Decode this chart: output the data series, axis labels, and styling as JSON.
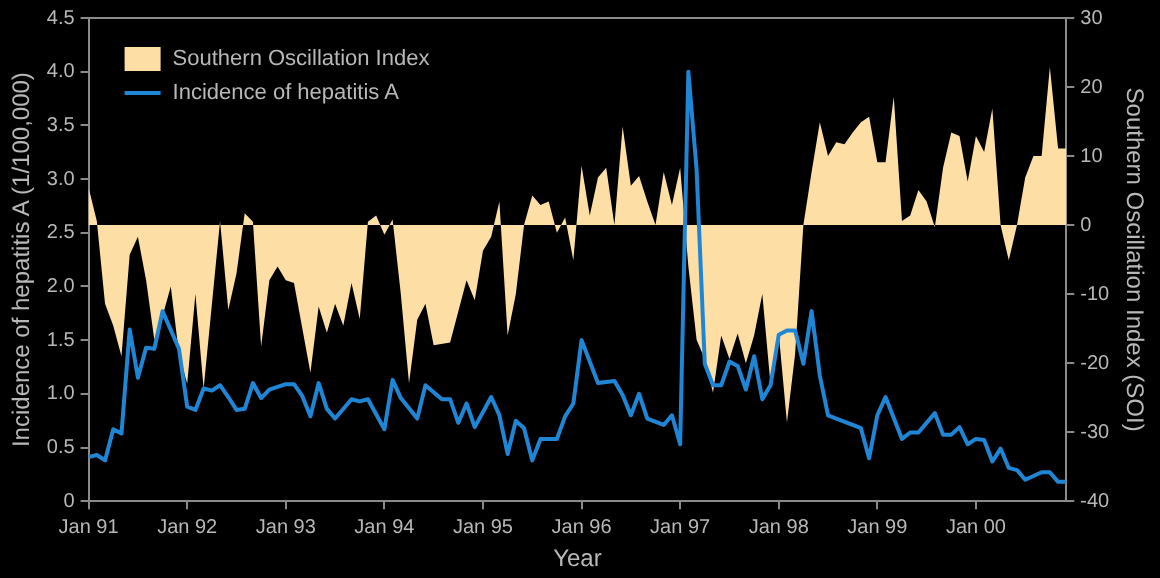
{
  "chart_data": {
    "type": "line",
    "xlabel": "Year",
    "ylabel": "Incidence of hepatitis A (1/100,000)",
    "y2label": "Southern Oscillation Index (SOI)",
    "legend": "top left",
    "grid": false,
    "marker": "none",
    "xlim": [
      "1991-01",
      "2000-12"
    ],
    "xticks": [
      {
        "value": "1991-01",
        "label": "Jan 91"
      },
      {
        "value": "1992-01",
        "label": "Jan 92"
      },
      {
        "value": "1993-01",
        "label": "Jan 93"
      },
      {
        "value": "1994-01",
        "label": "Jan 94"
      },
      {
        "value": "1995-01",
        "label": "Jan 95"
      },
      {
        "value": "1996-01",
        "label": "Jan 96"
      },
      {
        "value": "1997-01",
        "label": "Jan 97"
      },
      {
        "value": "1998-01",
        "label": "Jan 98"
      },
      {
        "value": "1999-01",
        "label": "Jan 99"
      },
      {
        "value": "2000-01",
        "label": "Jan 00"
      }
    ],
    "ylim": [
      0,
      4.5
    ],
    "yticks": [
      0,
      0.5,
      {
        "value": 1,
        "label": "1.0"
      },
      1.5,
      {
        "value": 2,
        "label": "2.0"
      },
      2.5,
      {
        "value": 3,
        "label": "3.0"
      },
      3.5,
      {
        "value": 4,
        "label": "4.0"
      },
      4.5
    ],
    "y2lim": [
      -40,
      30
    ],
    "y2ticks": [
      -40,
      -30,
      -20,
      -10,
      0,
      10,
      20,
      30
    ],
    "series": [
      {
        "name": "Southern Oscillation Index",
        "type": "area",
        "axis": "y2",
        "color": "#fddfa6",
        "x": [
          "1991-01",
          "1991-02",
          "1991-03",
          "1991-04",
          "1991-05",
          "1991-06",
          "1991-07",
          "1991-08",
          "1991-09",
          "1991-10",
          "1991-11",
          "1991-12",
          "1992-01",
          "1992-02",
          "1992-03",
          "1992-05",
          "1992-06",
          "1992-07",
          "1992-08",
          "1992-09",
          "1992-10",
          "1992-11",
          "1992-12",
          "1993-01",
          "1993-02",
          "1993-04",
          "1993-05",
          "1993-06",
          "1993-07",
          "1993-08",
          "1993-09",
          "1993-10",
          "1993-11",
          "1993-12",
          "1994-01",
          "1994-02",
          "1994-03",
          "1994-04",
          "1994-05",
          "1994-06",
          "1994-07",
          "1994-09",
          "1994-11",
          "1994-12",
          "1995-01",
          "1995-02",
          "1995-03",
          "1995-04",
          "1995-05",
          "1995-06",
          "1995-07",
          "1995-08",
          "1995-09",
          "1995-10",
          "1995-11",
          "1995-12",
          "1996-01",
          "1996-02",
          "1996-03",
          "1996-04",
          "1996-05",
          "1996-06",
          "1996-07",
          "1996-08",
          "1996-09",
          "1996-10",
          "1996-11",
          "1996-12",
          "1997-01",
          "1997-02",
          "1997-03",
          "1997-04",
          "1997-05",
          "1997-06",
          "1997-07",
          "1997-08",
          "1997-09",
          "1997-10",
          "1997-11",
          "1997-12",
          "1998-01",
          "1998-02",
          "1998-03",
          "1998-04",
          "1998-05",
          "1998-06",
          "1998-07",
          "1998-08",
          "1998-09",
          "1998-10",
          "1998-11",
          "1998-12",
          "1999-01",
          "1999-02",
          "1999-03",
          "1999-04",
          "1999-05",
          "1999-06",
          "1999-07",
          "1999-08",
          "1999-09",
          "1999-10",
          "1999-11",
          "1999-12",
          "2000-01",
          "2000-02",
          "2000-03",
          "2000-04",
          "2000-05",
          "2000-06",
          "2000-07",
          "2000-08",
          "2000-09",
          "2000-10",
          "2000-11",
          "2000-12"
        ],
        "values": [
          5.4,
          0.6,
          -11.4,
          -14.6,
          -19,
          -4.3,
          -1.7,
          -8,
          -16.6,
          -13.2,
          -8.9,
          -18.6,
          -23,
          -10,
          -23.7,
          0.6,
          -12.3,
          -7,
          1.7,
          0.5,
          -17.6,
          -8,
          -6,
          -8,
          -8.4,
          -21.4,
          -11.8,
          -15.6,
          -11.4,
          -14.6,
          -8.4,
          -13.6,
          0.5,
          1.4,
          -1.4,
          0.8,
          -10,
          -22.9,
          -13.7,
          -11.4,
          -17.4,
          -17,
          -8,
          -10.9,
          -3.7,
          -1.7,
          3.4,
          -16,
          -10,
          0,
          4.3,
          2.9,
          3.4,
          -1.1,
          1.1,
          -5.1,
          8.6,
          1.4,
          6.9,
          8.3,
          0,
          14.3,
          5.7,
          7.1,
          3.4,
          0,
          7.7,
          2.9,
          8.3,
          -6,
          -16.6,
          -19.4,
          -24.3,
          -16,
          -19.4,
          -15.7,
          -20,
          -16,
          -10,
          -23.1,
          -15.7,
          -28.6,
          -18.6,
          0,
          7.7,
          14.9,
          10,
          12,
          11.7,
          13.4,
          14.9,
          15.7,
          9.1,
          9.1,
          18.6,
          0.6,
          1.4,
          5.1,
          3.4,
          -0.3,
          8.3,
          13.4,
          12.9,
          6.3,
          12.9,
          10.6,
          16.9,
          0,
          -5.1,
          0,
          6.9,
          10,
          10,
          22.9,
          11.1,
          11.1
        ]
      },
      {
        "name": "Incidence of hepatitis A",
        "type": "line",
        "color": "#1f86d6",
        "x": [
          "1991-01",
          "1991-02",
          "1991-03",
          "1991-04",
          "1991-05",
          "1991-06",
          "1991-07",
          "1991-08",
          "1991-09",
          "1991-10",
          "1991-12",
          "1992-01",
          "1992-02",
          "1992-03",
          "1992-04",
          "1992-05",
          "1992-06",
          "1992-07",
          "1992-08",
          "1992-09",
          "1992-10",
          "1992-11",
          "1993-01",
          "1993-02",
          "1993-03",
          "1993-04",
          "1993-05",
          "1993-06",
          "1993-07",
          "1993-09",
          "1993-10",
          "1993-11",
          "1994-01",
          "1994-02",
          "1994-03",
          "1994-05",
          "1994-06",
          "1994-08",
          "1994-09",
          "1994-10",
          "1994-11",
          "1994-12",
          "1995-02",
          "1995-03",
          "1995-04",
          "1995-05",
          "1995-06",
          "1995-07",
          "1995-08",
          "1995-10",
          "1995-11",
          "1995-12",
          "1996-01",
          "1996-03",
          "1996-05",
          "1996-06",
          "1996-07",
          "1996-08",
          "1996-09",
          "1996-11",
          "1996-12",
          "1997-01",
          "1997-02",
          "1997-03",
          "1997-04",
          "1997-05",
          "1997-06",
          "1997-07",
          "1997-08",
          "1997-09",
          "1997-10",
          "1997-11",
          "1997-12",
          "1998-01",
          "1998-02",
          "1998-03",
          "1998-04",
          "1998-05",
          "1998-06",
          "1998-07",
          "1998-08",
          "1998-10",
          "1998-11",
          "1998-12",
          "1999-01",
          "1999-02",
          "1999-04",
          "1999-05",
          "1999-06",
          "1999-08",
          "1999-09",
          "1999-10",
          "1999-11",
          "1999-12",
          "2000-01",
          "2000-02",
          "2000-03",
          "2000-04",
          "2000-05",
          "2000-06",
          "2000-07",
          "2000-09",
          "2000-10",
          "2000-11",
          "2000-12"
        ],
        "values": [
          0.41,
          0.43,
          0.38,
          0.67,
          0.63,
          1.6,
          1.15,
          1.43,
          1.42,
          1.77,
          1.42,
          0.88,
          0.85,
          1.05,
          1.03,
          1.08,
          0.97,
          0.85,
          0.86,
          1.1,
          0.96,
          1.04,
          1.09,
          1.09,
          0.98,
          0.79,
          1.1,
          0.86,
          0.77,
          0.95,
          0.93,
          0.95,
          0.67,
          1.13,
          0.96,
          0.77,
          1.08,
          0.95,
          0.95,
          0.73,
          0.91,
          0.69,
          0.97,
          0.8,
          0.44,
          0.75,
          0.68,
          0.38,
          0.58,
          0.58,
          0.79,
          0.91,
          1.5,
          1.1,
          1.12,
          0.99,
          0.8,
          1.0,
          0.77,
          0.71,
          0.8,
          0.53,
          4.0,
          3.09,
          1.28,
          1.08,
          1.08,
          1.3,
          1.26,
          1.04,
          1.35,
          0.95,
          1.08,
          1.55,
          1.59,
          1.59,
          1.28,
          1.77,
          1.17,
          0.8,
          0.77,
          0.71,
          0.68,
          0.4,
          0.8,
          0.97,
          0.58,
          0.64,
          0.64,
          0.82,
          0.62,
          0.62,
          0.69,
          0.53,
          0.58,
          0.57,
          0.37,
          0.49,
          0.31,
          0.29,
          0.2,
          0.27,
          0.27,
          0.18,
          0.18
        ]
      }
    ]
  }
}
